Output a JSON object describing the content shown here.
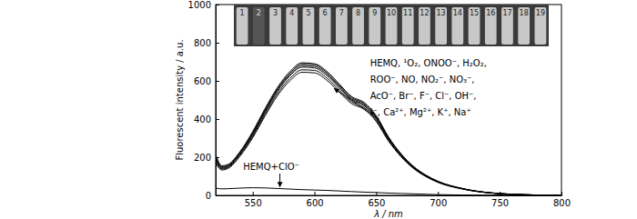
{
  "chart_data": {
    "type": "line",
    "x_label": "λ / nm",
    "y_label": "Fluorescent intensity / a.u.",
    "x": [
      520,
      525,
      530,
      540,
      550,
      560,
      570,
      580,
      590,
      600,
      610,
      620,
      630,
      640,
      650,
      660,
      670,
      680,
      690,
      700,
      720,
      740,
      760,
      780,
      800
    ],
    "series": [
      {
        "color": "#000000",
        "values": [
          205,
          150,
          158,
          228,
          328,
          448,
          558,
          640,
          688,
          684,
          643,
          578,
          512,
          482,
          412,
          302,
          216,
          151,
          106,
          73,
          35,
          15,
          6,
          2,
          0
        ]
      },
      {
        "color": "#000000",
        "values": [
          215,
          155,
          162,
          232,
          335,
          455,
          565,
          648,
          695,
          690,
          650,
          584,
          518,
          488,
          418,
          306,
          219,
          153,
          107,
          74,
          36,
          15,
          6,
          2,
          0
        ]
      },
      {
        "color": "#000000",
        "values": [
          190,
          142,
          150,
          220,
          318,
          436,
          545,
          626,
          672,
          668,
          628,
          564,
          500,
          470,
          402,
          295,
          211,
          147,
          103,
          71,
          34,
          14,
          6,
          2,
          0
        ]
      },
      {
        "color": "#000000",
        "values": [
          180,
          138,
          146,
          214,
          310,
          426,
          533,
          612,
          658,
          655,
          615,
          552,
          490,
          461,
          394,
          289,
          207,
          144,
          101,
          70,
          34,
          14,
          5,
          2,
          0
        ]
      },
      {
        "color": "#000000",
        "values": [
          198,
          146,
          154,
          224,
          322,
          441,
          550,
          632,
          680,
          676,
          636,
          571,
          506,
          476,
          407,
          298,
          213,
          149,
          104,
          72,
          35,
          15,
          6,
          2,
          0
        ]
      },
      {
        "color": "#000000",
        "values": [
          170,
          133,
          141,
          208,
          302,
          416,
          522,
          600,
          645,
          642,
          603,
          542,
          481,
          452,
          387,
          284,
          203,
          142,
          99,
          68,
          33,
          14,
          5,
          2,
          0
        ]
      },
      {
        "color": "#000000",
        "values": [
          38,
          34,
          35,
          38,
          40,
          39,
          36,
          33,
          30,
          28,
          26,
          23,
          20,
          17,
          15,
          12,
          10,
          8,
          6,
          4,
          2,
          1,
          1,
          0,
          0
        ]
      }
    ],
    "xlim": [
      520,
      800
    ],
    "xticks": [
      550,
      600,
      650,
      700,
      750,
      800
    ],
    "ylim": [
      0,
      1000
    ],
    "yticks": [
      0,
      200,
      400,
      600,
      800,
      1000
    ],
    "grid": false,
    "annotations": [
      {
        "text": [
          "HEMQ, ¹O₂, ONOO⁻, H₂O₂,",
          "ROO⁻, NO, NO₂⁻, NO₃⁻,",
          "AcO⁻, Br⁻, F⁻, Cl⁻, OH⁻,",
          "I⁻, Ca²⁺, Mg²⁺, K⁺, Na⁺"
        ]
      },
      {
        "text": [
          "HEMQ+ClO⁻"
        ]
      }
    ],
    "inset_labels": [
      "1",
      "2",
      "3",
      "4",
      "5",
      "6",
      "7",
      "8",
      "9",
      "10",
      "11",
      "12",
      "13",
      "14",
      "15",
      "16",
      "17",
      "18",
      "19"
    ]
  }
}
